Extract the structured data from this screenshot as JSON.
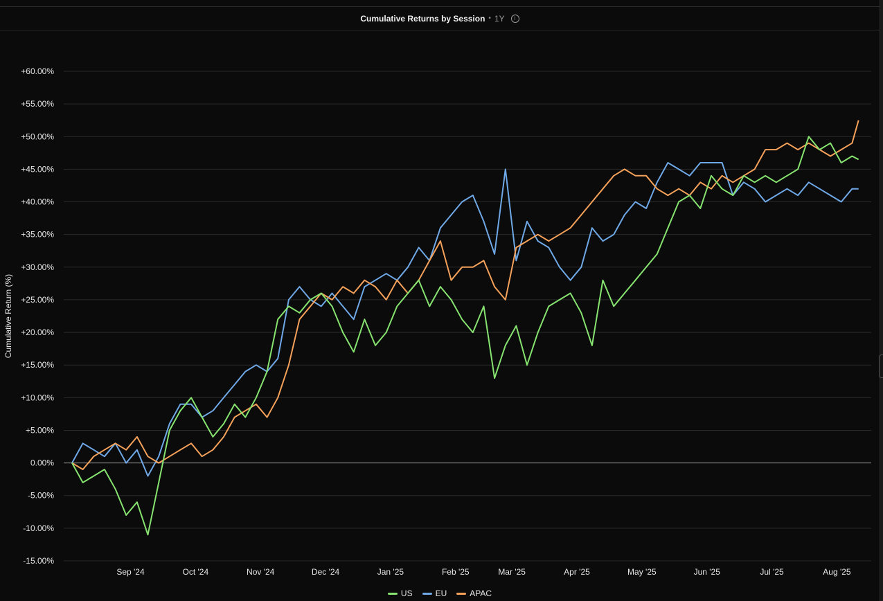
{
  "header": {
    "title": "Cumulative Returns by Session",
    "range": "1Y"
  },
  "colors": {
    "US": "#86e36f",
    "EU": "#6fa8e6",
    "APAC": "#f5a15a",
    "grid": "#2a2a2a",
    "zero": "#9a9a9a"
  },
  "chart_data": {
    "type": "line",
    "title": "Cumulative Returns by Session",
    "ylabel": "Cumulative Return (%)",
    "xlabel": "",
    "ylim": [
      -15,
      60
    ],
    "y_ticks": [
      -15,
      -10,
      -5,
      0,
      5,
      10,
      15,
      20,
      25,
      30,
      35,
      40,
      45,
      50,
      55,
      60
    ],
    "y_tick_labels": [
      "-15.00%",
      "-10.00%",
      "-5.00%",
      "0.00%",
      "+5.00%",
      "+10.00%",
      "+15.00%",
      "+20.00%",
      "+25.00%",
      "+30.00%",
      "+35.00%",
      "+40.00%",
      "+45.00%",
      "+50.00%",
      "+55.00%",
      "+60.00%"
    ],
    "x_ticks": [
      "Sep '24",
      "Oct '24",
      "Nov '24",
      "Dec '24",
      "Jan '25",
      "Feb '25",
      "Mar '25",
      "Apr '25",
      "May '25",
      "Jun '25",
      "Jul '25",
      "Aug '25"
    ],
    "x_tick_positions": [
      2.7,
      5.7,
      8.7,
      11.7,
      14.7,
      17.7,
      20.3,
      23.3,
      26.3,
      29.3,
      32.3,
      35.3
    ],
    "x_range": [
      0,
      36.5
    ],
    "grid": true,
    "legend_position": "bottom",
    "series": [
      {
        "name": "US",
        "x": [
          0,
          0.5,
          1,
          1.5,
          2,
          2.5,
          3,
          3.5,
          4,
          4.5,
          5,
          5.5,
          6,
          6.5,
          7,
          7.5,
          8,
          8.5,
          9,
          9.5,
          10,
          10.5,
          11,
          11.5,
          12,
          12.5,
          13,
          13.5,
          14,
          14.5,
          15,
          15.5,
          16,
          16.5,
          17,
          17.5,
          18,
          18.5,
          19,
          19.5,
          20,
          20.5,
          21,
          21.5,
          22,
          22.5,
          23,
          23.5,
          24,
          24.5,
          25,
          25.5,
          26,
          26.5,
          27,
          27.5,
          28,
          28.5,
          29,
          29.5,
          30,
          30.5,
          31,
          31.5,
          32,
          32.5,
          33,
          33.5,
          34,
          34.5,
          35,
          35.5,
          36,
          36.3
        ],
        "values": [
          0,
          -3,
          -2,
          -1,
          -4,
          -8,
          -6,
          -11,
          -3,
          5,
          8,
          10,
          7,
          4,
          6,
          9,
          7,
          10,
          14,
          22,
          24,
          23,
          25,
          26,
          24,
          20,
          17,
          22,
          18,
          20,
          24,
          26,
          28,
          24,
          27,
          25,
          22,
          20,
          24,
          13,
          18,
          21,
          15,
          20,
          24,
          25,
          26,
          23,
          18,
          28,
          24,
          26,
          28,
          30,
          32,
          36,
          40,
          41,
          39,
          44,
          42,
          41,
          44,
          43,
          44,
          43,
          44,
          45,
          50,
          48,
          49,
          46,
          47,
          46.5
        ]
      },
      {
        "name": "EU",
        "x": [
          0,
          0.5,
          1,
          1.5,
          2,
          2.5,
          3,
          3.5,
          4,
          4.5,
          5,
          5.5,
          6,
          6.5,
          7,
          7.5,
          8,
          8.5,
          9,
          9.5,
          10,
          10.5,
          11,
          11.5,
          12,
          12.5,
          13,
          13.5,
          14,
          14.5,
          15,
          15.5,
          16,
          16.5,
          17,
          17.5,
          18,
          18.5,
          19,
          19.5,
          20,
          20.5,
          21,
          21.5,
          22,
          22.5,
          23,
          23.5,
          24,
          24.5,
          25,
          25.5,
          26,
          26.5,
          27,
          27.5,
          28,
          28.5,
          29,
          29.5,
          30,
          30.5,
          31,
          31.5,
          32,
          32.5,
          33,
          33.5,
          34,
          34.5,
          35,
          35.5,
          36,
          36.3
        ],
        "values": [
          0,
          3,
          2,
          1,
          3,
          0,
          2,
          -2,
          1,
          6,
          9,
          9,
          7,
          8,
          10,
          12,
          14,
          15,
          14,
          16,
          25,
          27,
          25,
          24,
          26,
          24,
          22,
          27,
          28,
          29,
          28,
          30,
          33,
          31,
          36,
          38,
          40,
          41,
          37,
          32,
          45,
          31,
          37,
          34,
          33,
          30,
          28,
          30,
          36,
          34,
          35,
          38,
          40,
          39,
          43,
          46,
          45,
          44,
          46,
          46,
          46,
          41,
          43,
          42,
          40,
          41,
          42,
          41,
          43,
          42,
          41,
          40,
          42,
          42
        ]
      },
      {
        "name": "APAC",
        "x": [
          0,
          0.5,
          1,
          1.5,
          2,
          2.5,
          3,
          3.5,
          4,
          4.5,
          5,
          5.5,
          6,
          6.5,
          7,
          7.5,
          8,
          8.5,
          9,
          9.5,
          10,
          10.5,
          11,
          11.5,
          12,
          12.5,
          13,
          13.5,
          14,
          14.5,
          15,
          15.5,
          16,
          16.5,
          17,
          17.5,
          18,
          18.5,
          19,
          19.5,
          20,
          20.5,
          21,
          21.5,
          22,
          22.5,
          23,
          23.5,
          24,
          24.5,
          25,
          25.5,
          26,
          26.5,
          27,
          27.5,
          28,
          28.5,
          29,
          29.5,
          30,
          30.5,
          31,
          31.5,
          32,
          32.5,
          33,
          33.5,
          34,
          34.5,
          35,
          35.5,
          36,
          36.3
        ],
        "values": [
          0,
          -1,
          1,
          2,
          3,
          2,
          4,
          1,
          0,
          1,
          2,
          3,
          1,
          2,
          4,
          7,
          8,
          9,
          7,
          10,
          15,
          22,
          24,
          26,
          25,
          27,
          26,
          28,
          27,
          25,
          28,
          26,
          28,
          31,
          34,
          28,
          30,
          30,
          31,
          27,
          25,
          33,
          34,
          35,
          34,
          35,
          36,
          38,
          40,
          42,
          44,
          45,
          44,
          44,
          42,
          41,
          42,
          41,
          43,
          42,
          44,
          43,
          44,
          45,
          48,
          48,
          49,
          48,
          49,
          48,
          47,
          48,
          49,
          52.5
        ]
      }
    ]
  },
  "legend": {
    "items": [
      "US",
      "EU",
      "APAC"
    ]
  }
}
